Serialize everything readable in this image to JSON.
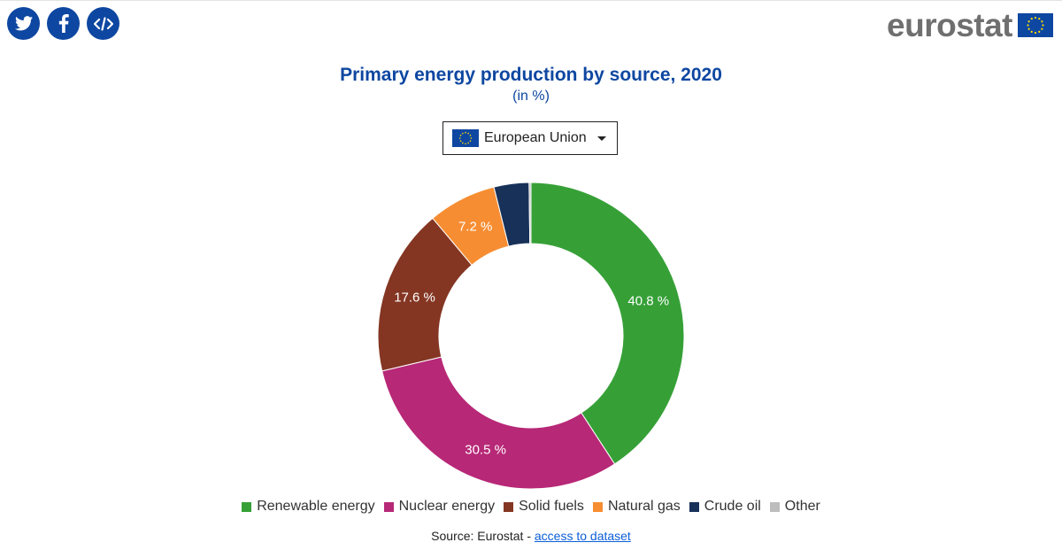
{
  "colors": {
    "brand": "#0e47a1",
    "renewable": "#36a037",
    "nuclear": "#b72877",
    "solid": "#843623",
    "gas": "#f78d32",
    "oil": "#173159",
    "other": "#bdbdbd"
  },
  "social": [
    {
      "name": "twitter-icon"
    },
    {
      "name": "facebook-icon"
    },
    {
      "name": "embed-icon"
    }
  ],
  "logo": {
    "text": "eurostat"
  },
  "selector": {
    "value": "European Union"
  },
  "chart_data": {
    "type": "pie",
    "variant": "donut",
    "title": "Primary energy production by source, 2020",
    "subtitle": "(in %)",
    "legend_position": "bottom",
    "categories": [
      "Renewable energy",
      "Nuclear energy",
      "Solid fuels",
      "Natural gas",
      "Crude oil",
      "Other"
    ],
    "values": [
      40.8,
      30.5,
      17.6,
      7.2,
      3.7,
      0.2
    ],
    "data_labels": [
      "40.8 %",
      "30.5 %",
      "17.6 %",
      "7.2 %",
      "",
      ""
    ],
    "colors": [
      "#36a037",
      "#b72877",
      "#843623",
      "#f78d32",
      "#173159",
      "#bdbdbd"
    ]
  },
  "source": {
    "prefix": "Source: Eurostat - ",
    "link": "access to dataset"
  }
}
